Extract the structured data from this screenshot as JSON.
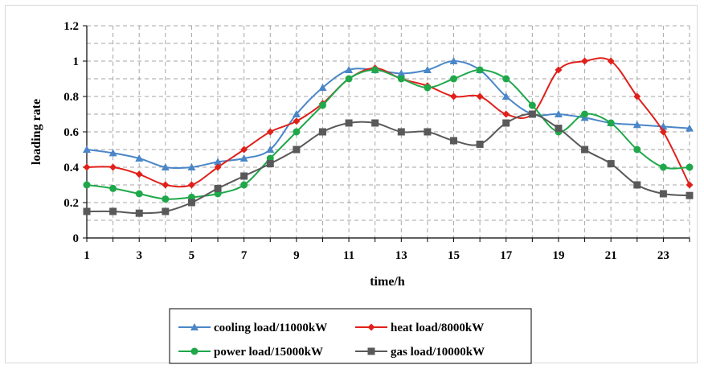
{
  "chart_data": {
    "type": "line",
    "title": "",
    "xlabel": "time/h",
    "ylabel": "loading rate",
    "x": [
      1,
      2,
      3,
      4,
      5,
      6,
      7,
      8,
      9,
      10,
      11,
      12,
      13,
      14,
      15,
      16,
      17,
      18,
      19,
      20,
      21,
      22,
      23,
      24
    ],
    "x_tick_labels": [
      "1",
      "3",
      "5",
      "7",
      "9",
      "11",
      "13",
      "15",
      "17",
      "19",
      "21",
      "23"
    ],
    "y_tick_labels": [
      "0",
      "0.2",
      "0.4",
      "0.6",
      "0.8",
      "1",
      "1.2"
    ],
    "xlim": [
      1,
      24
    ],
    "ylim": [
      0,
      1.2
    ],
    "grid": true,
    "legend_position": "bottom",
    "series": [
      {
        "name": "cooling load/11000kW",
        "color": "#4a86c8",
        "marker": "triangle",
        "values": [
          0.5,
          0.48,
          0.45,
          0.4,
          0.4,
          0.43,
          0.45,
          0.5,
          0.7,
          0.85,
          0.95,
          0.95,
          0.93,
          0.95,
          1.0,
          0.95,
          0.8,
          0.7,
          0.7,
          0.68,
          0.65,
          0.64,
          0.63,
          0.62
        ]
      },
      {
        "name": "heat load/8000kW",
        "color": "#e0201b",
        "marker": "diamond",
        "values": [
          0.4,
          0.4,
          0.36,
          0.3,
          0.3,
          0.4,
          0.5,
          0.6,
          0.66,
          0.76,
          0.9,
          0.96,
          0.9,
          0.86,
          0.8,
          0.8,
          0.7,
          0.7,
          0.95,
          1.0,
          1.0,
          0.8,
          0.6,
          0.3
        ]
      },
      {
        "name": "power load/15000kW",
        "color": "#1fa84a",
        "marker": "circle",
        "values": [
          0.3,
          0.28,
          0.25,
          0.22,
          0.23,
          0.25,
          0.3,
          0.45,
          0.6,
          0.75,
          0.9,
          0.95,
          0.9,
          0.85,
          0.9,
          0.95,
          0.9,
          0.75,
          0.6,
          0.7,
          0.65,
          0.5,
          0.4,
          0.4
        ]
      },
      {
        "name": "gas load/10000kW",
        "color": "#595959",
        "marker": "square",
        "values": [
          0.15,
          0.15,
          0.14,
          0.15,
          0.2,
          0.28,
          0.35,
          0.42,
          0.5,
          0.6,
          0.65,
          0.65,
          0.6,
          0.6,
          0.55,
          0.53,
          0.65,
          0.7,
          0.62,
          0.5,
          0.42,
          0.3,
          0.25,
          0.24
        ]
      }
    ]
  }
}
